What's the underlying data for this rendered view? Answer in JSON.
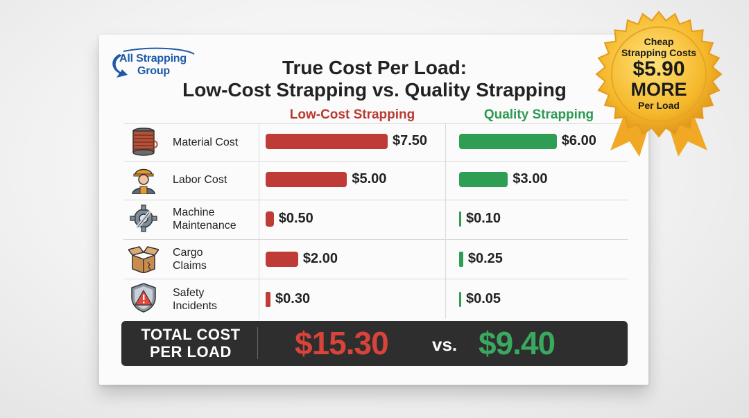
{
  "logo": {
    "line1": "All Strapping",
    "line2": "Group"
  },
  "chart_data": {
    "type": "bar",
    "title": "True Cost Per Load:",
    "subtitle": "Low-Cost Strapping vs. Quality Strapping",
    "categories": [
      {
        "line1": "Material Cost",
        "line2": ""
      },
      {
        "line1": "Labor Cost",
        "line2": ""
      },
      {
        "line1": "Machine",
        "line2": "Maintenance"
      },
      {
        "line1": "Cargo",
        "line2": "Claims"
      },
      {
        "line1": "Safety",
        "line2": "Incidents"
      }
    ],
    "series": [
      {
        "name": "Low-Cost Strapping",
        "color": "#bf3b35",
        "values": [
          7.5,
          5.0,
          0.5,
          2.0,
          0.3
        ],
        "labels": [
          "$7.50",
          "$5.00",
          "$0.50",
          "$2.00",
          "$0.30"
        ]
      },
      {
        "name": "Quality Strapping",
        "color": "#2f9e55",
        "values": [
          6.0,
          3.0,
          0.1,
          0.25,
          0.05
        ],
        "labels": [
          "$6.00",
          "$3.00",
          "$0.10",
          "$0.25",
          "$0.05"
        ]
      }
    ],
    "totals": {
      "label_line1": "TOTAL COST",
      "label_line2": "PER LOAD",
      "low": "$15.30",
      "vs": "vs.",
      "quality": "$9.40"
    },
    "icons": [
      "spool-icon",
      "worker-icon",
      "gear-wrench-icon",
      "broken-box-icon",
      "warning-shield-icon"
    ]
  },
  "badge": {
    "line1": "Cheap",
    "line2": "Strapping Costs",
    "line3": "$5.90",
    "line4": "MORE",
    "line5": "Per Load"
  }
}
